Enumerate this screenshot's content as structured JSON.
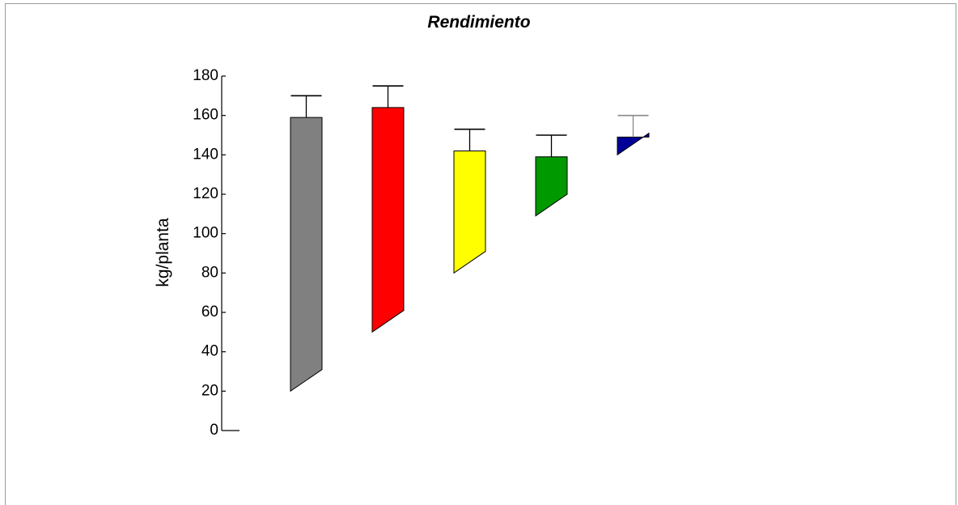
{
  "chart_data": {
    "type": "bar",
    "title": "Rendimiento",
    "xlabel": "",
    "ylabel": "kg/planta",
    "ylim": [
      0,
      180
    ],
    "yticks": [
      0,
      20,
      40,
      60,
      80,
      100,
      120,
      140,
      160,
      180
    ],
    "grid": false,
    "legend": "none",
    "series": [
      {
        "values": [
          159,
          164,
          142,
          139,
          149
        ],
        "errors": [
          11,
          11,
          11,
          11,
          11
        ],
        "colors": [
          "#808080",
          "#ff0000",
          "#ffff00",
          "#009900",
          "#000099"
        ],
        "bottom_front": [
          20,
          50,
          80,
          109,
          140
        ],
        "bottom_back": [
          31,
          61,
          91,
          120,
          151
        ]
      }
    ]
  }
}
